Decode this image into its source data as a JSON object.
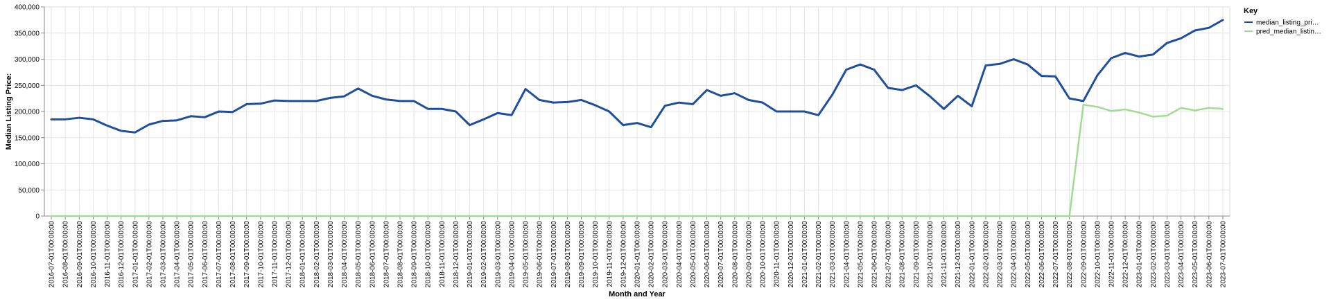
{
  "chart_data": {
    "type": "line",
    "xlabel": "Month and Year",
    "ylabel": "Median Listing Price:",
    "ylim": [
      0,
      400000
    ],
    "y_ticks": [
      0,
      50000,
      100000,
      150000,
      200000,
      250000,
      300000,
      350000,
      400000
    ],
    "y_tick_labels": [
      "0",
      "50,000",
      "100,000",
      "150,000",
      "200,000",
      "250,000",
      "300,000",
      "350,000",
      "400,000"
    ],
    "grid": true,
    "legend": {
      "title": "Key",
      "position": "top-right"
    },
    "x": [
      "2016-07-01T00:00:00",
      "2016-08-01T00:00:00",
      "2016-09-01T00:00:00",
      "2016-10-01T00:00:00",
      "2016-11-01T00:00:00",
      "2016-12-01T00:00:00",
      "2017-01-01T00:00:00",
      "2017-02-01T00:00:00",
      "2017-03-01T00:00:00",
      "2017-04-01T00:00:00",
      "2017-05-01T00:00:00",
      "2017-06-01T00:00:00",
      "2017-07-01T00:00:00",
      "2017-08-01T00:00:00",
      "2017-09-01T00:00:00",
      "2017-10-01T00:00:00",
      "2017-11-01T00:00:00",
      "2017-12-01T00:00:00",
      "2018-01-01T00:00:00",
      "2018-02-01T00:00:00",
      "2018-03-01T00:00:00",
      "2018-04-01T00:00:00",
      "2018-05-01T00:00:00",
      "2018-06-01T00:00:00",
      "2018-07-01T00:00:00",
      "2018-08-01T00:00:00",
      "2018-09-01T00:00:00",
      "2018-10-01T00:00:00",
      "2018-11-01T00:00:00",
      "2018-12-01T00:00:00",
      "2019-01-01T00:00:00",
      "2019-02-01T00:00:00",
      "2019-03-01T00:00:00",
      "2019-04-01T00:00:00",
      "2019-05-01T00:00:00",
      "2019-06-01T00:00:00",
      "2019-07-01T00:00:00",
      "2019-08-01T00:00:00",
      "2019-09-01T00:00:00",
      "2019-10-01T00:00:00",
      "2019-11-01T00:00:00",
      "2019-12-01T00:00:00",
      "2020-01-01T00:00:00",
      "2020-02-01T00:00:00",
      "2020-03-01T00:00:00",
      "2020-04-01T00:00:00",
      "2020-05-01T00:00:00",
      "2020-06-01T00:00:00",
      "2020-07-01T00:00:00",
      "2020-08-01T00:00:00",
      "2020-09-01T00:00:00",
      "2020-10-01T00:00:00",
      "2020-11-01T00:00:00",
      "2020-12-01T00:00:00",
      "2021-01-01T00:00:00",
      "2021-02-01T00:00:00",
      "2021-03-01T00:00:00",
      "2021-04-01T00:00:00",
      "2021-05-01T00:00:00",
      "2021-06-01T00:00:00",
      "2021-07-01T00:00:00",
      "2021-08-01T00:00:00",
      "2021-09-01T00:00:00",
      "2021-10-01T00:00:00",
      "2021-11-01T00:00:00",
      "2021-12-01T00:00:00",
      "2022-01-01T00:00:00",
      "2022-02-01T00:00:00",
      "2022-03-01T00:00:00",
      "2022-04-01T00:00:00",
      "2022-05-01T00:00:00",
      "2022-06-01T00:00:00",
      "2022-07-01T00:00:00",
      "2022-08-01T00:00:00",
      "2022-09-01T00:00:00",
      "2022-10-01T00:00:00",
      "2022-11-01T00:00:00",
      "2022-12-01T00:00:00",
      "2023-01-01T00:00:00",
      "2023-02-01T00:00:00",
      "2023-03-01T00:00:00",
      "2023-04-01T00:00:00",
      "2023-05-01T00:00:00",
      "2023-06-01T00:00:00",
      "2023-07-01T00:00:00"
    ],
    "series": [
      {
        "name": "median_listing_pri…",
        "color": "#1f4e9a",
        "values": [
          185000,
          185000,
          188000,
          185000,
          173000,
          163000,
          160000,
          175000,
          182000,
          183000,
          191000,
          189000,
          200000,
          199000,
          214000,
          215000,
          221000,
          220000,
          220000,
          220000,
          226000,
          229000,
          244000,
          230000,
          223000,
          220000,
          220000,
          205000,
          205000,
          200000,
          174000,
          185000,
          197000,
          193000,
          243000,
          222000,
          217000,
          218000,
          222000,
          212000,
          200000,
          174000,
          178000,
          170000,
          211000,
          217000,
          214000,
          241000,
          230000,
          235000,
          222000,
          217000,
          200000,
          200000,
          200000,
          193000,
          232000,
          280000,
          290000,
          280000,
          245000,
          241000,
          250000,
          229000,
          205000,
          230000,
          210000,
          288000,
          291000,
          300000,
          290000,
          268000,
          267000,
          225000,
          220000,
          269000,
          302000,
          312000,
          305000,
          309000,
          331000,
          340000,
          355000,
          360000,
          375000
        ]
      },
      {
        "name": "pred_median_listin…",
        "color": "#a3db96",
        "values": [
          0,
          0,
          0,
          0,
          0,
          0,
          0,
          0,
          0,
          0,
          0,
          0,
          0,
          0,
          0,
          0,
          0,
          0,
          0,
          0,
          0,
          0,
          0,
          0,
          0,
          0,
          0,
          0,
          0,
          0,
          0,
          0,
          0,
          0,
          0,
          0,
          0,
          0,
          0,
          0,
          0,
          0,
          0,
          0,
          0,
          0,
          0,
          0,
          0,
          0,
          0,
          0,
          0,
          0,
          0,
          0,
          0,
          0,
          0,
          0,
          0,
          0,
          0,
          0,
          0,
          0,
          0,
          0,
          0,
          0,
          0,
          0,
          0,
          0,
          213000,
          209000,
          201000,
          204000,
          198000,
          190000,
          192000,
          207000,
          202000,
          207000,
          205000
        ]
      }
    ]
  }
}
